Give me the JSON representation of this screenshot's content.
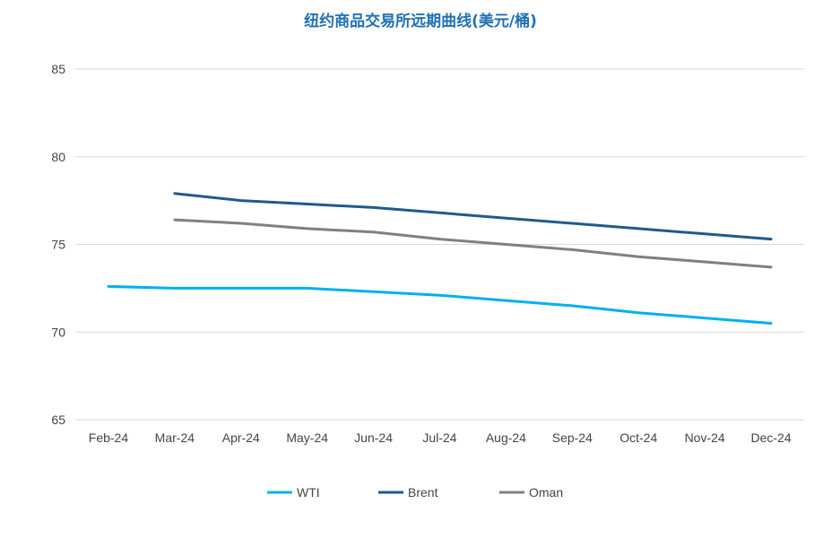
{
  "chart_data": {
    "type": "line",
    "title": "纽约商品交易所远期曲线(美元/桶)",
    "xlabel": "",
    "ylabel": "",
    "categories": [
      "Feb-24",
      "Mar-24",
      "Apr-24",
      "May-24",
      "Jun-24",
      "Jul-24",
      "Aug-24",
      "Sep-24",
      "Oct-24",
      "Nov-24",
      "Dec-24"
    ],
    "ylim": [
      65,
      85
    ],
    "yticks": [
      "65",
      "70",
      "75",
      "80",
      "85"
    ],
    "grid": true,
    "legend_position": "bottom",
    "series": [
      {
        "name": "WTI",
        "color": "#00b0f0",
        "values": [
          72.6,
          72.5,
          72.5,
          72.5,
          72.3,
          72.1,
          71.8,
          71.5,
          71.1,
          70.8,
          70.5
        ]
      },
      {
        "name": "Brent",
        "color": "#1f5a8c",
        "values": [
          null,
          77.9,
          77.5,
          77.3,
          77.1,
          76.8,
          76.5,
          76.2,
          75.9,
          75.6,
          75.3
        ]
      },
      {
        "name": "Oman",
        "color": "#808080",
        "values": [
          null,
          76.4,
          76.2,
          75.9,
          75.7,
          75.3,
          75.0,
          74.7,
          74.3,
          74.0,
          73.7
        ]
      }
    ]
  }
}
